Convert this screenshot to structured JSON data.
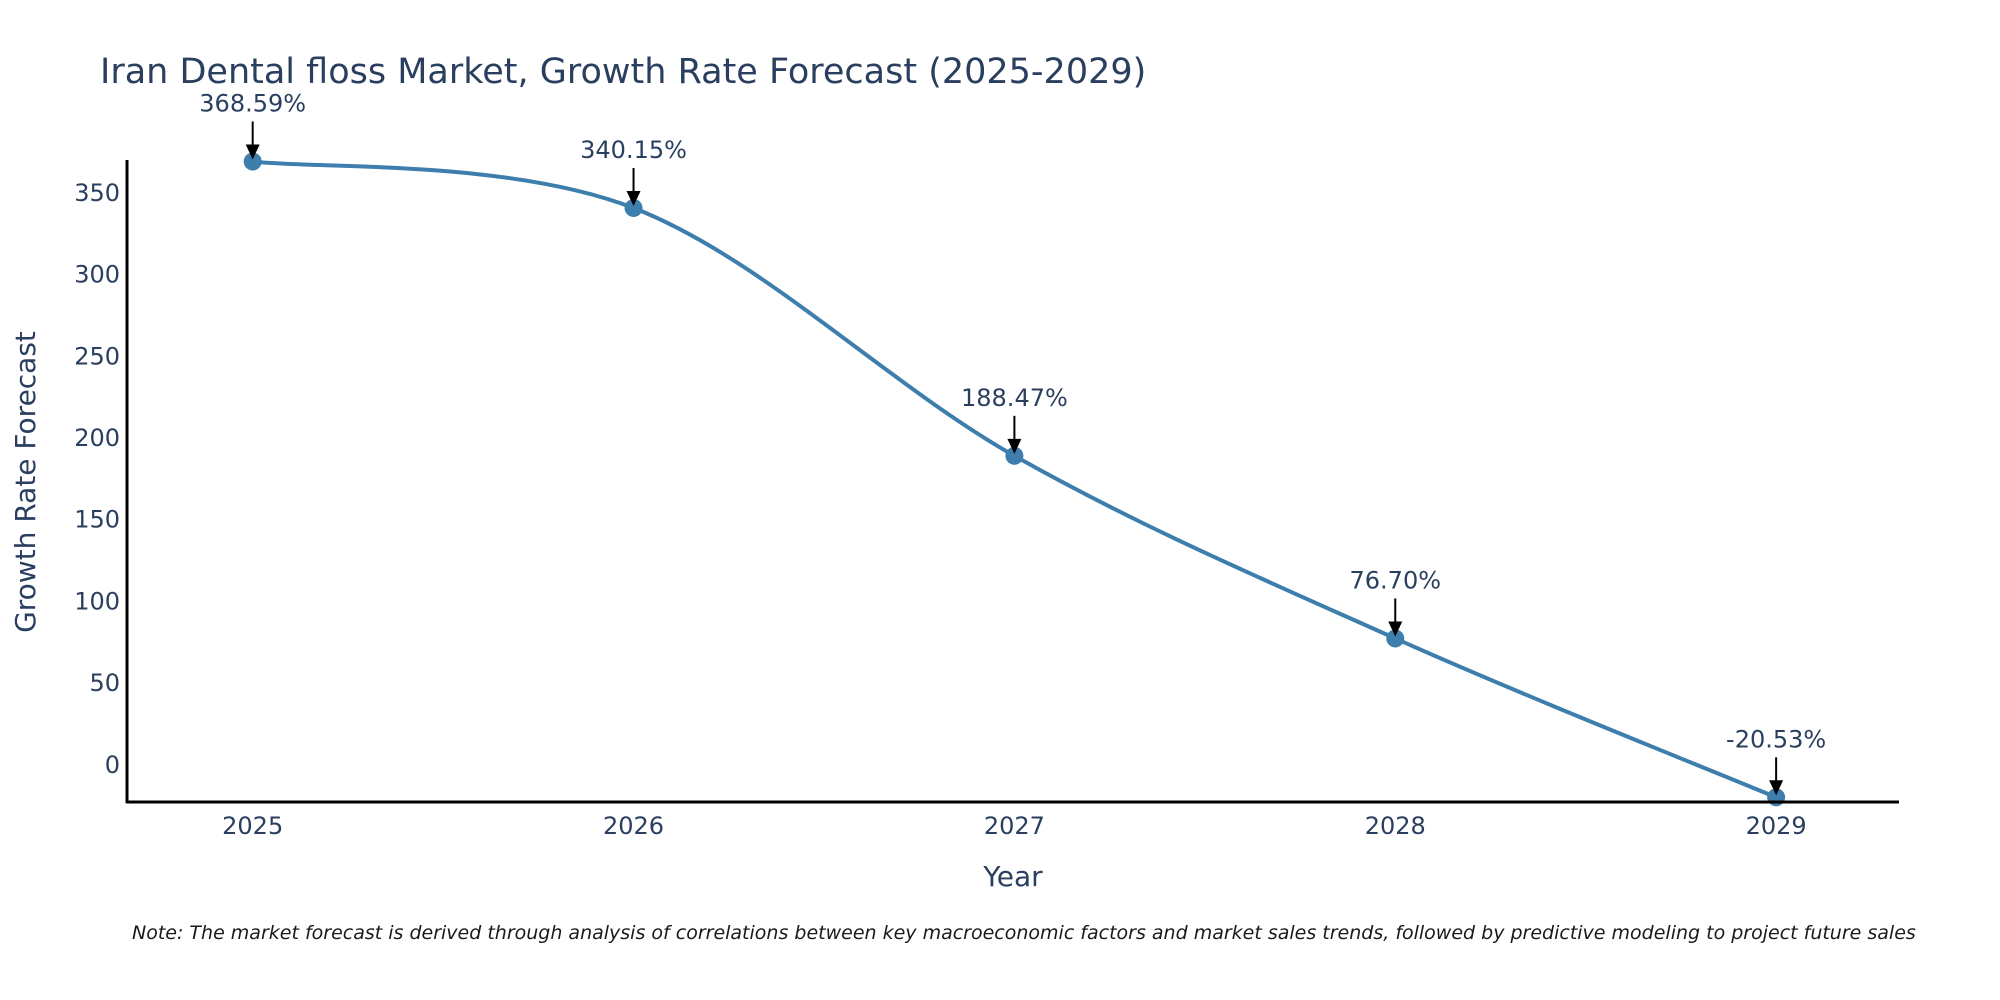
{
  "chart_data": {
    "type": "line",
    "title": "Iran Dental floss Market, Growth Rate Forecast (2025-2029)",
    "xlabel": "Year",
    "ylabel": "Growth Rate Forecast",
    "categories": [
      "2025",
      "2026",
      "2027",
      "2028",
      "2029"
    ],
    "series": [
      {
        "name": "Growth Rate Forecast",
        "values": [
          368.59,
          340.15,
          188.47,
          76.7,
          -20.53
        ],
        "color": "#3d7ead",
        "line_shape": "spline"
      }
    ],
    "data_labels": [
      "368.59%",
      "340.15%",
      "188.47%",
      "76.70%",
      "-20.53%"
    ],
    "yticks": [
      0,
      50,
      100,
      150,
      200,
      250,
      300,
      350
    ],
    "ytick_labels": [
      "0",
      "50",
      "100",
      "150",
      "200",
      "250",
      "300",
      "350"
    ],
    "ylim": [
      -23.4,
      368.9
    ],
    "xlim": [
      2024.67,
      2029.32
    ],
    "grid": false,
    "legend": "none"
  },
  "note": "Note: The market forecast is derived through analysis of correlations between key macroeconomic factors and market sales trends, followed by predictive modeling to project future sales"
}
